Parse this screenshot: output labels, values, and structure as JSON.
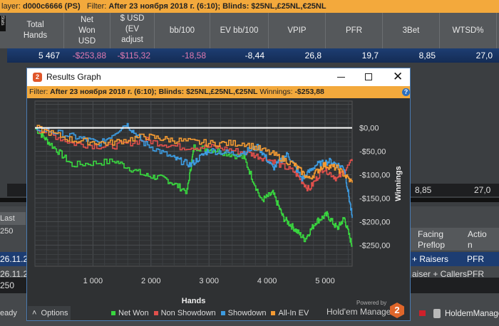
{
  "topbar": {
    "player_label": "layer:",
    "player": "d000c6666 (PS)",
    "filter_label": "Filter:",
    "filter": "After 23 ноября 2018 г. (6:10); Blinds: $25NL,£25NL,€25NL"
  },
  "side_tab": "Stats",
  "columns": [
    "Total\nHands",
    "Net\nWon\nUSD",
    "$ USD\n(EV\nadjust",
    "bb/100",
    "EV bb/100",
    "VPIP",
    "PFR",
    "3Bet",
    "WTSD%"
  ],
  "summary_row": [
    "5 467",
    "-$253,88",
    "-$115,32",
    "-18,58",
    "-8,44",
    "26,8",
    "19,7",
    "8,85",
    "27,0"
  ],
  "second_row": [
    "8,85",
    "27,0"
  ],
  "lower": {
    "last_label": "Last 250",
    "col_facing": "Facing\nPreflop",
    "col_action": "Actio\nn",
    "rows": [
      {
        "date": "26.11.2",
        "facing": "+ Raisers",
        "action": "PFR"
      },
      {
        "date": "26.11.2",
        "facing": "aiser + Callers",
        "action": "PFR"
      }
    ],
    "input_value": "250",
    "status": "eady",
    "taskbar_app": "HoldemManage"
  },
  "window": {
    "title": "Results Graph",
    "filter_label": "Filter:",
    "filter": "After 23 ноября 2018 г. (6:10); Blinds: $25NL,£25NL,€25NL",
    "winnings_label": "Winnings:",
    "winnings": "-$253,88",
    "options": "Options",
    "powered_by": "Powered by",
    "brand": "Hold'em Manager",
    "brand_num": "2"
  },
  "chart_data": {
    "type": "line",
    "xlabel": "Hands",
    "ylabel": "Winnings",
    "xlim": [
      0,
      5467
    ],
    "ylim": [
      -295,
      57
    ],
    "xticks": [
      1000,
      2000,
      3000,
      4000,
      5000
    ],
    "xtick_labels": [
      "1 000",
      "2 000",
      "3 000",
      "4 000",
      "5 000"
    ],
    "yticks": [
      0,
      -50,
      -100,
      -150,
      -200,
      -250
    ],
    "ytick_labels": [
      "$0,00",
      "-$50,00",
      "-$100,00",
      "-$150,00",
      "-$200,00",
      "-$250,00"
    ],
    "grid": true,
    "legend_position": "bottom",
    "series": [
      {
        "name": "Net Won",
        "color": "#39d63f",
        "x": [
          0,
          250,
          640,
          1380,
          1880,
          2250,
          2620,
          2740,
          3120,
          3600,
          3900,
          4100,
          4280,
          4470,
          4650,
          4840,
          5030,
          5210,
          5330,
          5467
        ],
        "y": [
          0,
          -33,
          -79,
          -71,
          -101,
          -109,
          -136,
          -41,
          -48,
          -64,
          -155,
          -139,
          -192,
          -215,
          -238,
          -200,
          -185,
          -215,
          -192,
          -253
        ]
      },
      {
        "name": "Non Showdown",
        "color": "#e0504c",
        "x": [
          0,
          640,
          1260,
          1880,
          2500,
          3120,
          3730,
          4100,
          4470,
          4720,
          4970,
          5210,
          5467
        ],
        "y": [
          0,
          -33,
          -41,
          -26,
          -41,
          -41,
          -56,
          -71,
          -94,
          -132,
          -86,
          -109,
          -71
        ]
      },
      {
        "name": "Showdown",
        "color": "#3d9be0",
        "x": [
          0,
          640,
          1140,
          1570,
          1880,
          2370,
          2680,
          2990,
          3480,
          3850,
          4100,
          4350,
          4600,
          4840,
          5090,
          5330,
          5467
        ],
        "y": [
          0,
          -18,
          -33,
          9,
          -33,
          -64,
          -79,
          -48,
          -56,
          -41,
          -86,
          -56,
          -109,
          -79,
          -71,
          -86,
          -192
        ]
      },
      {
        "name": "All-In EV",
        "color": "#f39a32",
        "x": [
          0,
          640,
          1260,
          1880,
          2370,
          2990,
          3610,
          4100,
          4470,
          4720,
          4970,
          5210,
          5467
        ],
        "y": [
          0,
          -26,
          -33,
          -18,
          -26,
          -33,
          -33,
          -56,
          -79,
          -109,
          -79,
          -86,
          -117
        ]
      }
    ]
  }
}
